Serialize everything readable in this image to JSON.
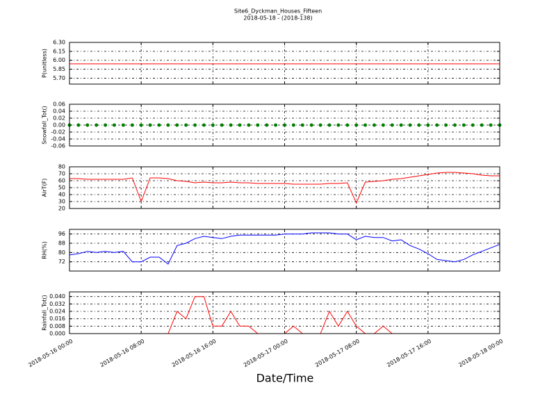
{
  "chart_data": [
    {
      "type": "line",
      "title": "Site6_Dyckman_Houses_Fifteen",
      "subtitle": "2018-05-18 - (2018-138)",
      "ylabel": "P(unitless)",
      "x": [
        "2018-05-16 00:00",
        "2018-05-16 01:00",
        "2018-05-16 02:00",
        "2018-05-16 03:00",
        "2018-05-16 04:00",
        "2018-05-16 05:00",
        "2018-05-16 06:00",
        "2018-05-16 07:00",
        "2018-05-16 08:00",
        "2018-05-16 09:00",
        "2018-05-16 10:00",
        "2018-05-16 11:00",
        "2018-05-16 12:00",
        "2018-05-16 13:00",
        "2018-05-16 14:00",
        "2018-05-16 15:00",
        "2018-05-16 16:00",
        "2018-05-16 17:00",
        "2018-05-16 18:00",
        "2018-05-16 19:00",
        "2018-05-16 20:00",
        "2018-05-16 21:00",
        "2018-05-16 22:00",
        "2018-05-16 23:00",
        "2018-05-17 00:00",
        "2018-05-17 01:00",
        "2018-05-17 02:00",
        "2018-05-17 03:00",
        "2018-05-17 04:00",
        "2018-05-17 05:00",
        "2018-05-17 06:00",
        "2018-05-17 07:00",
        "2018-05-17 08:00",
        "2018-05-17 09:00",
        "2018-05-17 10:00",
        "2018-05-17 11:00",
        "2018-05-17 12:00",
        "2018-05-17 13:00",
        "2018-05-17 14:00",
        "2018-05-17 15:00",
        "2018-05-17 16:00",
        "2018-05-17 17:00",
        "2018-05-17 18:00",
        "2018-05-17 19:00",
        "2018-05-17 20:00",
        "2018-05-17 21:00",
        "2018-05-17 22:00",
        "2018-05-17 23:00",
        "2018-05-18 00:00"
      ],
      "series": [
        {
          "color": "#ff0000",
          "values": [
            5.94,
            5.94,
            5.94,
            5.94,
            5.94,
            5.94,
            5.94,
            5.94,
            5.94,
            5.94,
            5.94,
            5.94,
            5.94,
            5.94,
            5.94,
            5.94,
            5.94,
            5.94,
            5.94,
            5.94,
            5.94,
            5.94,
            5.94,
            5.94,
            5.94,
            5.94,
            5.94,
            5.94,
            5.94,
            5.94,
            5.94,
            5.94,
            5.94,
            5.94,
            5.94,
            5.94,
            5.94,
            5.94,
            5.94,
            5.94,
            5.94,
            5.94,
            5.94,
            5.94,
            5.94,
            5.94,
            5.94,
            5.94,
            5.94
          ]
        }
      ],
      "xlim": [
        "2018-05-16 00:00",
        "2018-05-18 00:00"
      ],
      "xticks": [
        "2018-05-16 00:00",
        "2018-05-16 08:00",
        "2018-05-16 16:00",
        "2018-05-17 00:00",
        "2018-05-17 08:00",
        "2018-05-17 16:00",
        "2018-05-18 00:00"
      ],
      "ylim": [
        5.6,
        6.3
      ],
      "yticks": [
        {
          "value": 5.7,
          "label": "5.70"
        },
        5.85,
        {
          "value": 6.0,
          "label": "6.00"
        },
        6.15,
        {
          "value": 6.3,
          "label": "6.30"
        }
      ],
      "grid": true
    },
    {
      "type": "line",
      "ylabel": "Snowfall_Tot()",
      "marker": "o",
      "x": [
        "2018-05-16 00:00",
        "2018-05-16 01:00",
        "2018-05-16 02:00",
        "2018-05-16 03:00",
        "2018-05-16 04:00",
        "2018-05-16 05:00",
        "2018-05-16 06:00",
        "2018-05-16 07:00",
        "2018-05-16 08:00",
        "2018-05-16 09:00",
        "2018-05-16 10:00",
        "2018-05-16 11:00",
        "2018-05-16 12:00",
        "2018-05-16 13:00",
        "2018-05-16 14:00",
        "2018-05-16 15:00",
        "2018-05-16 16:00",
        "2018-05-16 17:00",
        "2018-05-16 18:00",
        "2018-05-16 19:00",
        "2018-05-16 20:00",
        "2018-05-16 21:00",
        "2018-05-16 22:00",
        "2018-05-16 23:00",
        "2018-05-17 00:00",
        "2018-05-17 01:00",
        "2018-05-17 02:00",
        "2018-05-17 03:00",
        "2018-05-17 04:00",
        "2018-05-17 05:00",
        "2018-05-17 06:00",
        "2018-05-17 07:00",
        "2018-05-17 08:00",
        "2018-05-17 09:00",
        "2018-05-17 10:00",
        "2018-05-17 11:00",
        "2018-05-17 12:00",
        "2018-05-17 13:00",
        "2018-05-17 14:00",
        "2018-05-17 15:00",
        "2018-05-17 16:00",
        "2018-05-17 17:00",
        "2018-05-17 18:00",
        "2018-05-17 19:00",
        "2018-05-17 20:00",
        "2018-05-17 21:00",
        "2018-05-17 22:00",
        "2018-05-17 23:00",
        "2018-05-18 00:00"
      ],
      "series": [
        {
          "color": "#008000",
          "values": [
            0,
            0,
            0,
            0,
            0,
            0,
            0,
            0,
            0,
            0,
            0,
            0,
            0,
            0,
            0,
            0,
            0,
            0,
            0,
            0,
            0,
            0,
            0,
            0,
            0,
            0,
            0,
            0,
            0,
            0,
            0,
            0,
            0,
            0,
            0,
            0,
            0,
            0,
            0,
            0,
            0,
            0,
            0,
            0,
            0,
            0,
            0,
            0,
            0
          ]
        }
      ],
      "xlim": [
        "2018-05-16 00:00",
        "2018-05-18 00:00"
      ],
      "xticks": [
        "2018-05-16 00:00",
        "2018-05-16 08:00",
        "2018-05-16 16:00",
        "2018-05-17 00:00",
        "2018-05-17 08:00",
        "2018-05-17 16:00",
        "2018-05-18 00:00"
      ],
      "ylim": [
        -0.06,
        0.06
      ],
      "yticks": [
        -0.06,
        -0.04,
        -0.02,
        {
          "value": 0,
          "label": "0.00"
        },
        0.02,
        0.04,
        0.06
      ],
      "grid": true
    },
    {
      "type": "line",
      "ylabel": "AirT(F)",
      "x": [
        "2018-05-16 00:00",
        "2018-05-16 01:00",
        "2018-05-16 02:00",
        "2018-05-16 03:00",
        "2018-05-16 04:00",
        "2018-05-16 05:00",
        "2018-05-16 06:00",
        "2018-05-16 07:00",
        "2018-05-16 08:00",
        "2018-05-16 09:00",
        "2018-05-16 10:00",
        "2018-05-16 11:00",
        "2018-05-16 12:00",
        "2018-05-16 13:00",
        "2018-05-16 14:00",
        "2018-05-16 15:00",
        "2018-05-16 16:00",
        "2018-05-16 17:00",
        "2018-05-16 18:00",
        "2018-05-16 19:00",
        "2018-05-16 20:00",
        "2018-05-16 21:00",
        "2018-05-16 22:00",
        "2018-05-16 23:00",
        "2018-05-17 00:00",
        "2018-05-17 01:00",
        "2018-05-17 02:00",
        "2018-05-17 03:00",
        "2018-05-17 04:00",
        "2018-05-17 05:00",
        "2018-05-17 06:00",
        "2018-05-17 07:00",
        "2018-05-17 08:00",
        "2018-05-17 09:00",
        "2018-05-17 10:00",
        "2018-05-17 11:00",
        "2018-05-17 12:00",
        "2018-05-17 13:00",
        "2018-05-17 14:00",
        "2018-05-17 15:00",
        "2018-05-17 16:00",
        "2018-05-17 17:00",
        "2018-05-17 18:00",
        "2018-05-17 19:00",
        "2018-05-17 20:00",
        "2018-05-17 21:00",
        "2018-05-17 22:00",
        "2018-05-17 23:00",
        "2018-05-18 00:00"
      ],
      "series": [
        {
          "color": "#ff0000",
          "values": [
            63,
            63,
            62,
            62,
            62,
            62,
            62,
            64,
            30,
            64,
            64,
            63,
            60,
            59,
            57,
            58,
            57,
            57,
            58,
            57,
            57,
            56,
            56,
            56,
            56,
            55,
            55,
            55,
            55,
            56,
            56,
            57,
            28,
            58,
            59,
            60,
            62,
            63,
            65,
            67,
            69,
            71,
            72,
            72,
            71,
            70,
            68,
            67,
            67
          ]
        }
      ],
      "xlim": [
        "2018-05-16 00:00",
        "2018-05-18 00:00"
      ],
      "xticks": [
        "2018-05-16 00:00",
        "2018-05-16 08:00",
        "2018-05-16 16:00",
        "2018-05-17 00:00",
        "2018-05-17 08:00",
        "2018-05-17 16:00",
        "2018-05-18 00:00"
      ],
      "ylim": [
        20,
        80
      ],
      "yticks": [
        20,
        30,
        40,
        50,
        60,
        70,
        80
      ],
      "grid": true
    },
    {
      "type": "line",
      "ylabel": "RH(%)",
      "x": [
        "2018-05-16 00:00",
        "2018-05-16 01:00",
        "2018-05-16 02:00",
        "2018-05-16 03:00",
        "2018-05-16 04:00",
        "2018-05-16 05:00",
        "2018-05-16 06:00",
        "2018-05-16 07:00",
        "2018-05-16 08:00",
        "2018-05-16 09:00",
        "2018-05-16 10:00",
        "2018-05-16 11:00",
        "2018-05-16 12:00",
        "2018-05-16 13:00",
        "2018-05-16 14:00",
        "2018-05-16 15:00",
        "2018-05-16 16:00",
        "2018-05-16 17:00",
        "2018-05-16 18:00",
        "2018-05-16 19:00",
        "2018-05-16 20:00",
        "2018-05-16 21:00",
        "2018-05-16 22:00",
        "2018-05-16 23:00",
        "2018-05-17 00:00",
        "2018-05-17 01:00",
        "2018-05-17 02:00",
        "2018-05-17 03:00",
        "2018-05-17 04:00",
        "2018-05-17 05:00",
        "2018-05-17 06:00",
        "2018-05-17 07:00",
        "2018-05-17 08:00",
        "2018-05-17 09:00",
        "2018-05-17 10:00",
        "2018-05-17 11:00",
        "2018-05-17 12:00",
        "2018-05-17 13:00",
        "2018-05-17 14:00",
        "2018-05-17 15:00",
        "2018-05-17 16:00",
        "2018-05-17 17:00",
        "2018-05-17 18:00",
        "2018-05-17 19:00",
        "2018-05-17 20:00",
        "2018-05-17 21:00",
        "2018-05-17 22:00",
        "2018-05-17 23:00",
        "2018-05-18 00:00"
      ],
      "series": [
        {
          "color": "#0000ff",
          "values": [
            78,
            79,
            81,
            80,
            81,
            80,
            81,
            72,
            72,
            76,
            76,
            70,
            86,
            88,
            92,
            94,
            93,
            92,
            94,
            95,
            95,
            95,
            95,
            95,
            96,
            96,
            96,
            97,
            97,
            97,
            96,
            96,
            91,
            94,
            93,
            93,
            90,
            91,
            86,
            83,
            79,
            74,
            73,
            72,
            74,
            78,
            81,
            84,
            87
          ]
        }
      ],
      "xlim": [
        "2018-05-16 00:00",
        "2018-05-18 00:00"
      ],
      "xticks": [
        "2018-05-16 00:00",
        "2018-05-16 08:00",
        "2018-05-16 16:00",
        "2018-05-17 00:00",
        "2018-05-17 08:00",
        "2018-05-17 16:00",
        "2018-05-18 00:00"
      ],
      "ylim": [
        64,
        100
      ],
      "yticks": [
        72,
        80,
        88,
        96
      ],
      "grid": true
    },
    {
      "type": "line",
      "ylabel": "Rainfall_Tot()",
      "xlabel": "Date/Time",
      "show_xtick_labels": true,
      "x": [
        "2018-05-16 00:00",
        "2018-05-16 01:00",
        "2018-05-16 02:00",
        "2018-05-16 03:00",
        "2018-05-16 04:00",
        "2018-05-16 05:00",
        "2018-05-16 06:00",
        "2018-05-16 07:00",
        "2018-05-16 08:00",
        "2018-05-16 09:00",
        "2018-05-16 10:00",
        "2018-05-16 11:00",
        "2018-05-16 12:00",
        "2018-05-16 13:00",
        "2018-05-16 14:00",
        "2018-05-16 15:00",
        "2018-05-16 16:00",
        "2018-05-16 17:00",
        "2018-05-16 18:00",
        "2018-05-16 19:00",
        "2018-05-16 20:00",
        "2018-05-16 21:00",
        "2018-05-16 22:00",
        "2018-05-16 23:00",
        "2018-05-17 00:00",
        "2018-05-17 01:00",
        "2018-05-17 02:00",
        "2018-05-17 03:00",
        "2018-05-17 04:00",
        "2018-05-17 05:00",
        "2018-05-17 06:00",
        "2018-05-17 07:00",
        "2018-05-17 08:00",
        "2018-05-17 09:00",
        "2018-05-17 10:00",
        "2018-05-17 11:00",
        "2018-05-17 12:00",
        "2018-05-17 13:00",
        "2018-05-17 14:00",
        "2018-05-17 15:00",
        "2018-05-17 16:00",
        "2018-05-17 17:00",
        "2018-05-17 18:00",
        "2018-05-17 19:00",
        "2018-05-17 20:00",
        "2018-05-17 21:00",
        "2018-05-17 22:00",
        "2018-05-17 23:00",
        "2018-05-18 00:00"
      ],
      "series": [
        {
          "color": "#ff0000",
          "values": [
            0,
            0,
            0,
            0,
            0,
            0,
            0,
            0,
            0,
            0,
            0,
            0,
            0.024,
            0.016,
            0.04,
            0.04,
            0.008,
            0.008,
            0.024,
            0.008,
            0.008,
            0,
            0,
            0,
            0,
            0.008,
            0,
            0,
            0,
            0.024,
            0.008,
            0.024,
            0.008,
            0,
            0,
            0.008,
            0,
            0,
            0,
            0,
            0,
            0,
            0,
            0,
            0,
            0,
            0,
            0,
            0
          ]
        }
      ],
      "xlim": [
        "2018-05-16 00:00",
        "2018-05-18 00:00"
      ],
      "xticks": [
        "2018-05-16 00:00",
        "2018-05-16 08:00",
        "2018-05-16 16:00",
        "2018-05-17 00:00",
        "2018-05-17 08:00",
        "2018-05-17 16:00",
        "2018-05-18 00:00"
      ],
      "ylim": [
        0,
        0.045
      ],
      "yticks": [
        {
          "value": 0,
          "label": "0.000"
        },
        0.008,
        0.016,
        0.024,
        0.032,
        {
          "value": 0.04,
          "label": "0.040"
        }
      ],
      "grid": true
    }
  ]
}
